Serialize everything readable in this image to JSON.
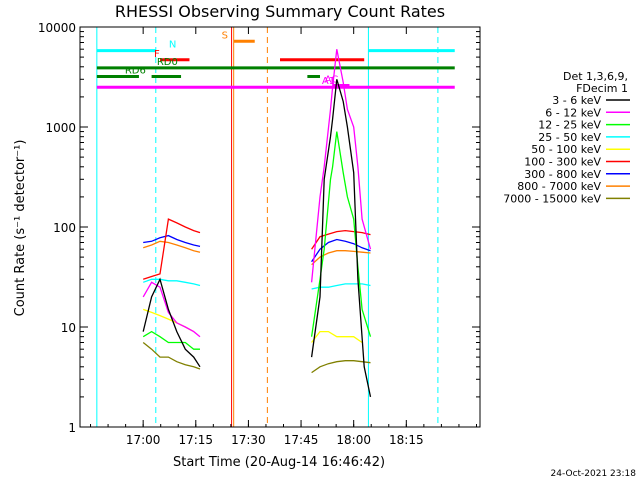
{
  "chart_data": {
    "type": "line",
    "title": "RHESSI Observing Summary Count Rates",
    "xlabel": "Start Time (20-Aug-14 16:46:42)",
    "ylabel": "Count Rate (s⁻¹ detector⁻¹)",
    "footer": "24-Oct-2021 23:18",
    "yscale": "log",
    "ylim": [
      1,
      10000
    ],
    "xlim_minutes": [
      16.7,
      18.6
    ],
    "x_axis_unit": "hours (decimal, UT)",
    "x_tick_values": [
      17.0,
      17.25,
      17.5,
      17.75,
      18.0,
      18.25
    ],
    "x_tick_labels": [
      "17:00",
      "17:15",
      "17:30",
      "17:45",
      "18:00",
      "18:15"
    ],
    "y_tick_values": [
      1,
      10,
      100,
      1000,
      10000
    ],
    "y_tick_labels": [
      "1",
      "10",
      "100",
      "1000",
      "10000"
    ],
    "legend_header": [
      "Det 1,3,6,9,",
      "FDecim 1"
    ],
    "legend_position": "right",
    "series": [
      {
        "name": "3 - 6 keV",
        "color": "#000000",
        "segments": [
          [
            [
              17.0,
              9
            ],
            [
              17.04,
              20
            ],
            [
              17.08,
              30
            ],
            [
              17.12,
              15
            ],
            [
              17.16,
              9
            ],
            [
              17.2,
              6
            ],
            [
              17.24,
              5
            ],
            [
              17.27,
              4
            ]
          ],
          [
            [
              17.8,
              5
            ],
            [
              17.84,
              20
            ],
            [
              17.86,
              300
            ],
            [
              17.89,
              800
            ],
            [
              17.9,
              1200
            ],
            [
              17.92,
              3000
            ],
            [
              17.95,
              1800
            ],
            [
              17.97,
              1000
            ],
            [
              18.0,
              350
            ],
            [
              18.02,
              30
            ],
            [
              18.05,
              4
            ],
            [
              18.08,
              2
            ]
          ]
        ]
      },
      {
        "name": "6 - 12 keV",
        "color": "#ff00ff",
        "segments": [
          [
            [
              17.0,
              20
            ],
            [
              17.04,
              28
            ],
            [
              17.08,
              25
            ],
            [
              17.12,
              14
            ],
            [
              17.16,
              11
            ],
            [
              17.2,
              10
            ],
            [
              17.24,
              9
            ],
            [
              17.27,
              8
            ]
          ],
          [
            [
              17.8,
              28
            ],
            [
              17.84,
              200
            ],
            [
              17.86,
              400
            ],
            [
              17.89,
              1500
            ],
            [
              17.9,
              2500
            ],
            [
              17.92,
              6000
            ],
            [
              17.95,
              2800
            ],
            [
              17.97,
              1500
            ],
            [
              18.0,
              1000
            ],
            [
              18.02,
              400
            ],
            [
              18.04,
              120
            ],
            [
              18.08,
              60
            ]
          ]
        ]
      },
      {
        "name": "12 - 25 keV",
        "color": "#00ff00",
        "segments": [
          [
            [
              17.0,
              8
            ],
            [
              17.04,
              9
            ],
            [
              17.08,
              8
            ],
            [
              17.12,
              7
            ],
            [
              17.16,
              7
            ],
            [
              17.2,
              7
            ],
            [
              17.24,
              6
            ],
            [
              17.27,
              6
            ]
          ],
          [
            [
              17.8,
              8
            ],
            [
              17.84,
              30
            ],
            [
              17.86,
              60
            ],
            [
              17.89,
              300
            ],
            [
              17.9,
              400
            ],
            [
              17.92,
              900
            ],
            [
              17.95,
              350
            ],
            [
              17.97,
              200
            ],
            [
              18.0,
              120
            ],
            [
              18.02,
              40
            ],
            [
              18.04,
              15
            ],
            [
              18.08,
              8
            ]
          ]
        ]
      },
      {
        "name": "25 - 50 keV",
        "color": "#00ffff",
        "segments": [
          [
            [
              17.0,
              28
            ],
            [
              17.04,
              30
            ],
            [
              17.08,
              30
            ],
            [
              17.12,
              29
            ],
            [
              17.16,
              29
            ],
            [
              17.2,
              28
            ],
            [
              17.24,
              27
            ],
            [
              17.27,
              26
            ]
          ],
          [
            [
              17.8,
              24
            ],
            [
              17.84,
              25
            ],
            [
              17.88,
              25
            ],
            [
              17.92,
              26
            ],
            [
              17.96,
              27
            ],
            [
              18.0,
              27
            ],
            [
              18.04,
              27
            ],
            [
              18.08,
              26
            ]
          ]
        ]
      },
      {
        "name": "50 - 100 keV",
        "color": "#ffff00",
        "segments": [
          [
            [
              17.0,
              15
            ],
            [
              17.04,
              14
            ],
            [
              17.08,
              13
            ],
            [
              17.12,
              12
            ],
            [
              17.16,
              11
            ],
            [
              17.2,
              10
            ],
            [
              17.24,
              9
            ]
          ],
          [
            [
              17.8,
              7
            ],
            [
              17.84,
              9
            ],
            [
              17.88,
              9
            ],
            [
              17.92,
              8
            ],
            [
              17.96,
              8
            ],
            [
              18.0,
              8
            ],
            [
              18.04,
              7
            ]
          ]
        ]
      },
      {
        "name": "100 - 300 keV",
        "color": "#ff0000",
        "segments": [
          [
            [
              17.0,
              30
            ],
            [
              17.04,
              32
            ],
            [
              17.08,
              34
            ],
            [
              17.12,
              120
            ],
            [
              17.16,
              110
            ],
            [
              17.2,
              100
            ],
            [
              17.24,
              92
            ],
            [
              17.27,
              88
            ]
          ],
          [
            [
              17.8,
              60
            ],
            [
              17.84,
              80
            ],
            [
              17.88,
              85
            ],
            [
              17.92,
              90
            ],
            [
              17.96,
              92
            ],
            [
              18.0,
              90
            ],
            [
              18.04,
              88
            ],
            [
              18.08,
              84
            ]
          ]
        ]
      },
      {
        "name": "300 - 800 keV",
        "color": "#0000ff",
        "segments": [
          [
            [
              17.0,
              70
            ],
            [
              17.04,
              72
            ],
            [
              17.08,
              78
            ],
            [
              17.12,
              82
            ],
            [
              17.16,
              75
            ],
            [
              17.2,
              70
            ],
            [
              17.24,
              66
            ],
            [
              17.27,
              64
            ]
          ],
          [
            [
              17.8,
              45
            ],
            [
              17.84,
              60
            ],
            [
              17.88,
              70
            ],
            [
              17.92,
              75
            ],
            [
              17.96,
              72
            ],
            [
              18.0,
              68
            ],
            [
              18.04,
              62
            ],
            [
              18.08,
              58
            ]
          ]
        ]
      },
      {
        "name": "800 - 7000 keV",
        "color": "#ff8000",
        "segments": [
          [
            [
              17.0,
              62
            ],
            [
              17.04,
              66
            ],
            [
              17.08,
              72
            ],
            [
              17.12,
              70
            ],
            [
              17.16,
              66
            ],
            [
              17.2,
              62
            ],
            [
              17.24,
              58
            ],
            [
              17.27,
              56
            ]
          ],
          [
            [
              17.8,
              42
            ],
            [
              17.84,
              50
            ],
            [
              17.88,
              55
            ],
            [
              17.92,
              58
            ],
            [
              17.96,
              58
            ],
            [
              18.0,
              57
            ],
            [
              18.04,
              56
            ],
            [
              18.08,
              55
            ]
          ]
        ]
      },
      {
        "name": "7000 - 15000 keV",
        "color": "#808000",
        "segments": [
          [
            [
              17.0,
              7
            ],
            [
              17.04,
              6
            ],
            [
              17.08,
              5
            ],
            [
              17.12,
              5
            ],
            [
              17.16,
              4.5
            ],
            [
              17.2,
              4.2
            ],
            [
              17.24,
              4
            ],
            [
              17.27,
              3.8
            ]
          ],
          [
            [
              17.8,
              3.5
            ],
            [
              17.84,
              4
            ],
            [
              17.88,
              4.3
            ],
            [
              17.92,
              4.5
            ],
            [
              17.96,
              4.6
            ],
            [
              18.0,
              4.6
            ],
            [
              18.04,
              4.5
            ],
            [
              18.08,
              4.4
            ]
          ]
        ]
      }
    ],
    "vertical_markers": [
      {
        "x": 16.78,
        "color": "#00ffff",
        "style": "solid"
      },
      {
        "x": 17.06,
        "color": "#00ffff",
        "style": "dashed"
      },
      {
        "x": 17.43,
        "color": "#ff8000",
        "style": "solid"
      },
      {
        "x": 17.59,
        "color": "#ff8000",
        "style": "dashed"
      },
      {
        "x": 18.07,
        "color": "#00ffff",
        "style": "solid"
      },
      {
        "x": 18.4,
        "color": "#00ffff",
        "style": "dashed"
      },
      {
        "x": 17.42,
        "color": "#ff0000",
        "style": "solid"
      }
    ],
    "flag_bars": [
      {
        "label": "N",
        "color": "#00ffff",
        "segments": [
          [
            16.78,
            17.06
          ],
          [
            18.07,
            18.48
          ]
        ],
        "level": 5800
      },
      {
        "label": "S",
        "color": "#ff8000",
        "segments": [
          [
            17.43,
            17.53
          ]
        ],
        "level": 7200
      },
      {
        "label": "F",
        "color": "#ff0000",
        "segments": [
          [
            17.08,
            17.22
          ],
          [
            17.65,
            18.05
          ]
        ],
        "level": 4700
      },
      {
        "label": "RD0",
        "color": "#008000",
        "segments": [
          [
            16.78,
            18.48
          ]
        ],
        "level": 3900
      },
      {
        "label": "RD6",
        "color": "#008000",
        "segments": [
          [
            16.78,
            16.98
          ],
          [
            17.04,
            17.18
          ],
          [
            17.78,
            17.84
          ]
        ],
        "level": 3200
      },
      {
        "label": "AC",
        "color": "#ff00ff",
        "segments": [
          [
            17.9,
            17.98
          ]
        ],
        "level": 2600
      },
      {
        "label": "A1",
        "color": "#ff00ff",
        "segments": [
          [
            16.78,
            18.48
          ]
        ],
        "level": 2500
      }
    ]
  }
}
